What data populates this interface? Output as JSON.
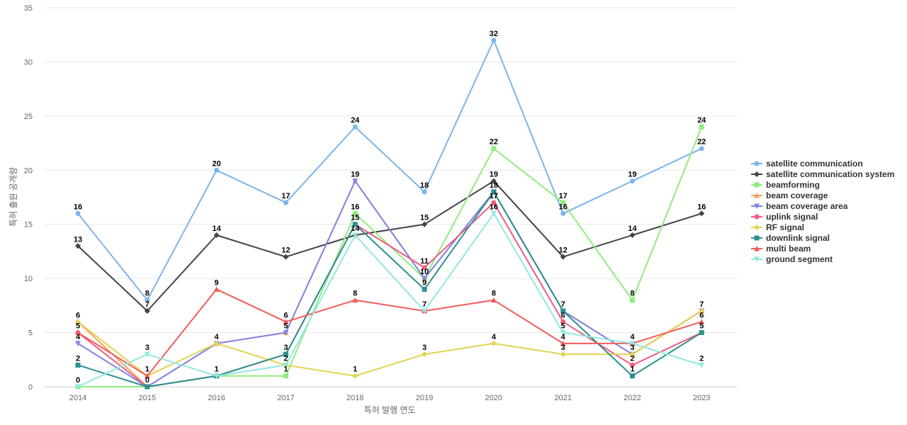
{
  "chart_data": {
    "type": "line",
    "xlabel": "특허 발행 연도",
    "ylabel": "특허 출원 공개량",
    "x": [
      "2014",
      "2015",
      "2016",
      "2017",
      "2018",
      "2019",
      "2020",
      "2021",
      "2022",
      "2023"
    ],
    "ylim": [
      0,
      35
    ],
    "yticks": [
      "0",
      "5",
      "10",
      "15",
      "20",
      "25",
      "30",
      "35"
    ],
    "grid": "horizontal",
    "legend": "right",
    "series": [
      {
        "name": "satellite communication",
        "color": "#7cb5ec",
        "marker": "circle",
        "values": [
          16,
          8,
          20,
          17,
          24,
          18,
          32,
          16,
          19,
          22
        ]
      },
      {
        "name": "satellite communication system",
        "color": "#434348",
        "marker": "diamond",
        "values": [
          13,
          7,
          14,
          12,
          14,
          15,
          19,
          12,
          14,
          16
        ]
      },
      {
        "name": "beamforming",
        "color": "#90ed7d",
        "marker": "square",
        "values": [
          0,
          0,
          1,
          1,
          16,
          10,
          22,
          17,
          8,
          24
        ]
      },
      {
        "name": "beam coverage",
        "color": "#f7a35c",
        "marker": "triangle",
        "values": [
          6,
          0,
          4,
          5,
          19,
          10,
          18,
          7,
          3,
          7
        ]
      },
      {
        "name": "beam coverage area",
        "color": "#8085e9",
        "marker": "triangle-down",
        "values": [
          4,
          0,
          4,
          5,
          19,
          10,
          18,
          7,
          3,
          7
        ]
      },
      {
        "name": "uplink signal",
        "color": "#f15c80",
        "marker": "circle",
        "values": [
          5,
          0,
          1,
          3,
          15,
          11,
          17,
          6,
          2,
          5
        ]
      },
      {
        "name": "RF signal",
        "color": "#e4d354",
        "marker": "diamond",
        "values": [
          6,
          1,
          4,
          2,
          1,
          3,
          4,
          3,
          3,
          7
        ]
      },
      {
        "name": "downlink signal",
        "color": "#2b908f",
        "marker": "square",
        "values": [
          2,
          0,
          1,
          3,
          15,
          9,
          18,
          7,
          1,
          5
        ]
      },
      {
        "name": "multi beam",
        "color": "#f45b5b",
        "marker": "triangle",
        "values": [
          5,
          1,
          9,
          6,
          8,
          7,
          8,
          4,
          4,
          6
        ]
      },
      {
        "name": "ground segment",
        "color": "#91e8e1",
        "marker": "triangle-down",
        "values": [
          0,
          3,
          1,
          2,
          14,
          7,
          16,
          5,
          4,
          2
        ]
      }
    ],
    "data_labels": [
      {
        "x": "2014",
        "y": 16,
        "text": "16"
      },
      {
        "x": "2014",
        "y": 13,
        "text": "13"
      },
      {
        "x": "2014",
        "y": 6,
        "text": "6"
      },
      {
        "x": "2014",
        "y": 5,
        "text": "5"
      },
      {
        "x": "2014",
        "y": 4,
        "text": "4"
      },
      {
        "x": "2014",
        "y": 2,
        "text": "2"
      },
      {
        "x": "2014",
        "y": 0,
        "text": "0"
      },
      {
        "x": "2015",
        "y": 8,
        "text": "8"
      },
      {
        "x": "2015",
        "y": 7,
        "text": "7"
      },
      {
        "x": "2015",
        "y": 3,
        "text": "3"
      },
      {
        "x": "2015",
        "y": 1,
        "text": "1"
      },
      {
        "x": "2015",
        "y": 0,
        "text": "0"
      },
      {
        "x": "2016",
        "y": 20,
        "text": "20"
      },
      {
        "x": "2016",
        "y": 14,
        "text": "14"
      },
      {
        "x": "2016",
        "y": 9,
        "text": "9"
      },
      {
        "x": "2016",
        "y": 4,
        "text": "4"
      },
      {
        "x": "2016",
        "y": 1,
        "text": "1"
      },
      {
        "x": "2017",
        "y": 17,
        "text": "17"
      },
      {
        "x": "2017",
        "y": 12,
        "text": "12"
      },
      {
        "x": "2017",
        "y": 6,
        "text": "6"
      },
      {
        "x": "2017",
        "y": 5,
        "text": "5"
      },
      {
        "x": "2017",
        "y": 3,
        "text": "3"
      },
      {
        "x": "2017",
        "y": 2,
        "text": "2"
      },
      {
        "x": "2017",
        "y": 1,
        "text": "1"
      },
      {
        "x": "2018",
        "y": 24,
        "text": "24"
      },
      {
        "x": "2018",
        "y": 19,
        "text": "19"
      },
      {
        "x": "2018",
        "y": 16,
        "text": "16"
      },
      {
        "x": "2018",
        "y": 15,
        "text": "15"
      },
      {
        "x": "2018",
        "y": 14,
        "text": "14"
      },
      {
        "x": "2018",
        "y": 8,
        "text": "8"
      },
      {
        "x": "2018",
        "y": 1,
        "text": "1"
      },
      {
        "x": "2019",
        "y": 18,
        "text": "18"
      },
      {
        "x": "2019",
        "y": 15,
        "text": "15"
      },
      {
        "x": "2019",
        "y": 11,
        "text": "11"
      },
      {
        "x": "2019",
        "y": 10,
        "text": "10"
      },
      {
        "x": "2019",
        "y": 9,
        "text": "9"
      },
      {
        "x": "2019",
        "y": 7,
        "text": "7"
      },
      {
        "x": "2019",
        "y": 3,
        "text": "3"
      },
      {
        "x": "2020",
        "y": 32,
        "text": "32"
      },
      {
        "x": "2020",
        "y": 22,
        "text": "22"
      },
      {
        "x": "2020",
        "y": 19,
        "text": "19"
      },
      {
        "x": "2020",
        "y": 18,
        "text": "18"
      },
      {
        "x": "2020",
        "y": 17,
        "text": "17"
      },
      {
        "x": "2020",
        "y": 16,
        "text": "16"
      },
      {
        "x": "2020",
        "y": 8,
        "text": "8"
      },
      {
        "x": "2020",
        "y": 4,
        "text": "4"
      },
      {
        "x": "2021",
        "y": 17,
        "text": "17"
      },
      {
        "x": "2021",
        "y": 16,
        "text": "16"
      },
      {
        "x": "2021",
        "y": 12,
        "text": "12"
      },
      {
        "x": "2021",
        "y": 7,
        "text": "7"
      },
      {
        "x": "2021",
        "y": 6,
        "text": "6"
      },
      {
        "x": "2021",
        "y": 5,
        "text": "5"
      },
      {
        "x": "2021",
        "y": 4,
        "text": "4"
      },
      {
        "x": "2021",
        "y": 3,
        "text": "3"
      },
      {
        "x": "2022",
        "y": 19,
        "text": "19"
      },
      {
        "x": "2022",
        "y": 14,
        "text": "14"
      },
      {
        "x": "2022",
        "y": 8,
        "text": "8"
      },
      {
        "x": "2022",
        "y": 4,
        "text": "4"
      },
      {
        "x": "2022",
        "y": 3,
        "text": "3"
      },
      {
        "x": "2022",
        "y": 2,
        "text": "2"
      },
      {
        "x": "2022",
        "y": 1,
        "text": "1"
      },
      {
        "x": "2023",
        "y": 24,
        "text": "24"
      },
      {
        "x": "2023",
        "y": 22,
        "text": "22"
      },
      {
        "x": "2023",
        "y": 16,
        "text": "16"
      },
      {
        "x": "2023",
        "y": 7,
        "text": "7"
      },
      {
        "x": "2023",
        "y": 6,
        "text": "6"
      },
      {
        "x": "2023",
        "y": 5,
        "text": "5"
      },
      {
        "x": "2023",
        "y": 2,
        "text": "2"
      }
    ]
  }
}
